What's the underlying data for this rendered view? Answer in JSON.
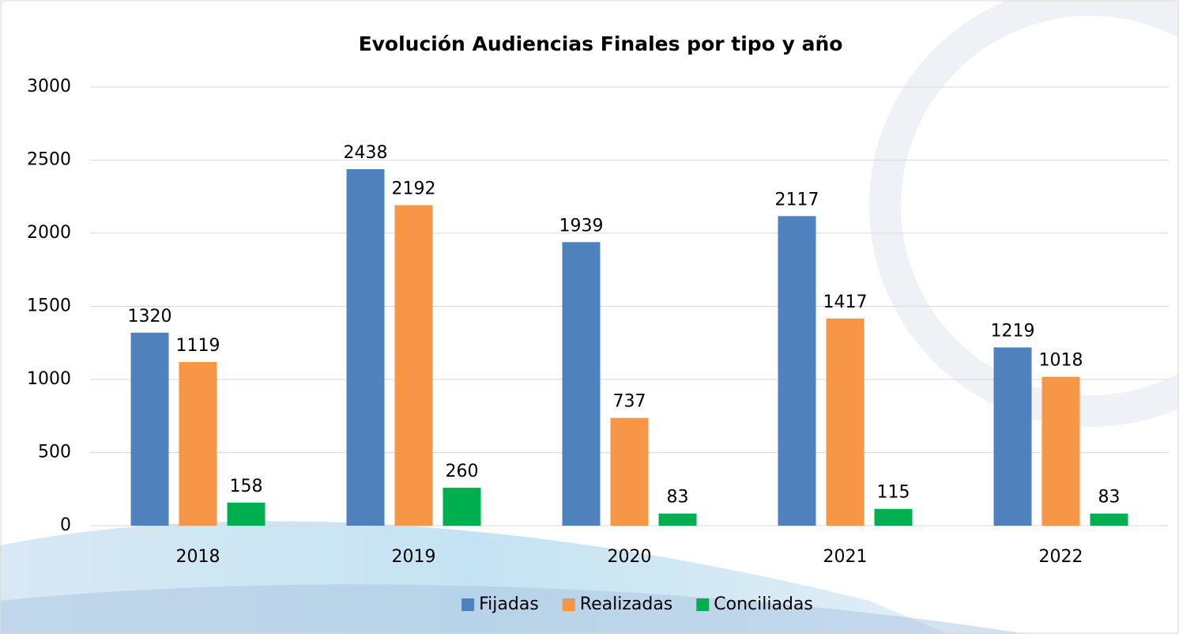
{
  "chart_data": {
    "type": "bar",
    "title": "Evolución Audiencias Finales por tipo y año",
    "categories": [
      "2018",
      "2019",
      "2020",
      "2021",
      "2022"
    ],
    "series": [
      {
        "name": "Fijadas",
        "color": "#4f81bd",
        "values": [
          1320,
          2438,
          1939,
          2117,
          1219
        ]
      },
      {
        "name": "Realizadas",
        "color": "#f79646",
        "values": [
          1119,
          2192,
          737,
          1417,
          1018
        ]
      },
      {
        "name": "Conciliadas",
        "color": "#00b050",
        "values": [
          158,
          260,
          83,
          115,
          83
        ]
      }
    ],
    "ylim": [
      0,
      3000
    ],
    "yticks": [
      0,
      500,
      1000,
      1500,
      2000,
      2500,
      3000
    ],
    "grid": true,
    "legend": "bottom"
  }
}
